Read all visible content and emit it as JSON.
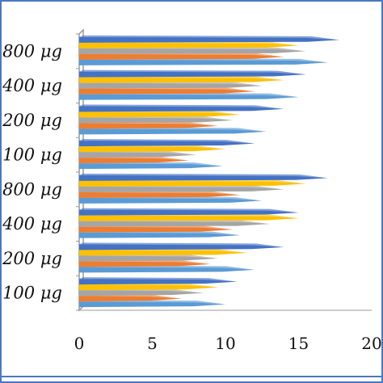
{
  "chart_data": {
    "type": "bar",
    "orientation": "horizontal",
    "categories": [
      "100 μg",
      "200 μg",
      "400 μg",
      "800 μg",
      "100 μg",
      "200 μg",
      "400 μg",
      "800 μg"
    ],
    "xlim": [
      0,
      20
    ],
    "xticks": [
      "0",
      "5",
      "10",
      "15",
      "20"
    ],
    "grid": false,
    "series_colors": [
      "#5b9bd5",
      "#ed7d31",
      "#a5a5a5",
      "#ffc000",
      "#4472c4"
    ],
    "series": [
      {
        "values": [
          10.0,
          12.0,
          11.0,
          12.5,
          9.8,
          12.8,
          15.0,
          17.0
        ]
      },
      {
        "values": [
          7.0,
          9.0,
          10.5,
          11.0,
          7.5,
          9.5,
          12.0,
          14.0
        ]
      },
      {
        "values": [
          8.5,
          9.5,
          13.0,
          14.0,
          8.0,
          10.5,
          12.5,
          15.5
        ]
      },
      {
        "values": [
          9.5,
          11.5,
          15.0,
          15.5,
          10.0,
          11.0,
          14.0,
          15.0
        ]
      },
      {
        "values": [
          10.8,
          14.0,
          15.0,
          17.0,
          12.0,
          14.0,
          15.5,
          17.8
        ]
      }
    ]
  }
}
